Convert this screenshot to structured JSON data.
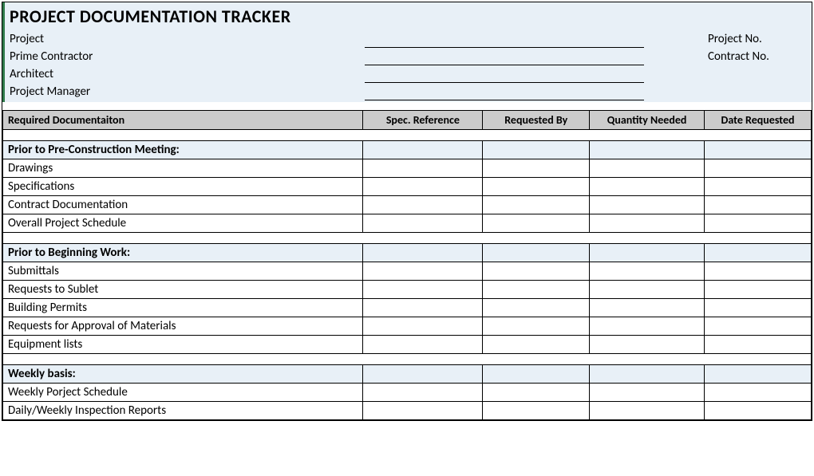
{
  "title": "PROJECT DOCUMENTATION TRACKER",
  "header": {
    "left_labels": [
      "Project",
      "Prime Contractor",
      "Architect",
      "Project Manager"
    ],
    "right_labels": [
      "Project No.",
      "Contract No."
    ]
  },
  "columns": {
    "doc": "Required Documentaiton",
    "spec": "Spec. Reference",
    "req": "Requested By",
    "qty": "Quantity Needed",
    "date": "Date Requested"
  },
  "sections": [
    {
      "heading": "Prior to Pre-Construction Meeting:",
      "items": [
        "Drawings",
        "Specifications",
        "Contract Documentation",
        "Overall Project Schedule"
      ],
      "trailing_blank": true
    },
    {
      "heading": "Prior to Beginning Work:",
      "items": [
        "Submittals",
        "Requests to Sublet",
        "Building Permits",
        "Requests for Approval of Materials",
        "Equipment lists"
      ],
      "trailing_blank": true
    },
    {
      "heading": "Weekly basis:",
      "items": [
        "Weekly Porject Schedule",
        "Daily/Weekly Inspection Reports"
      ],
      "trailing_blank": false
    }
  ],
  "colors": {
    "header_bg": "#e8f0f7",
    "section_bg": "#e8f0f7",
    "th_bg": "#cccccc",
    "accent_border": "#2f7a4a"
  }
}
